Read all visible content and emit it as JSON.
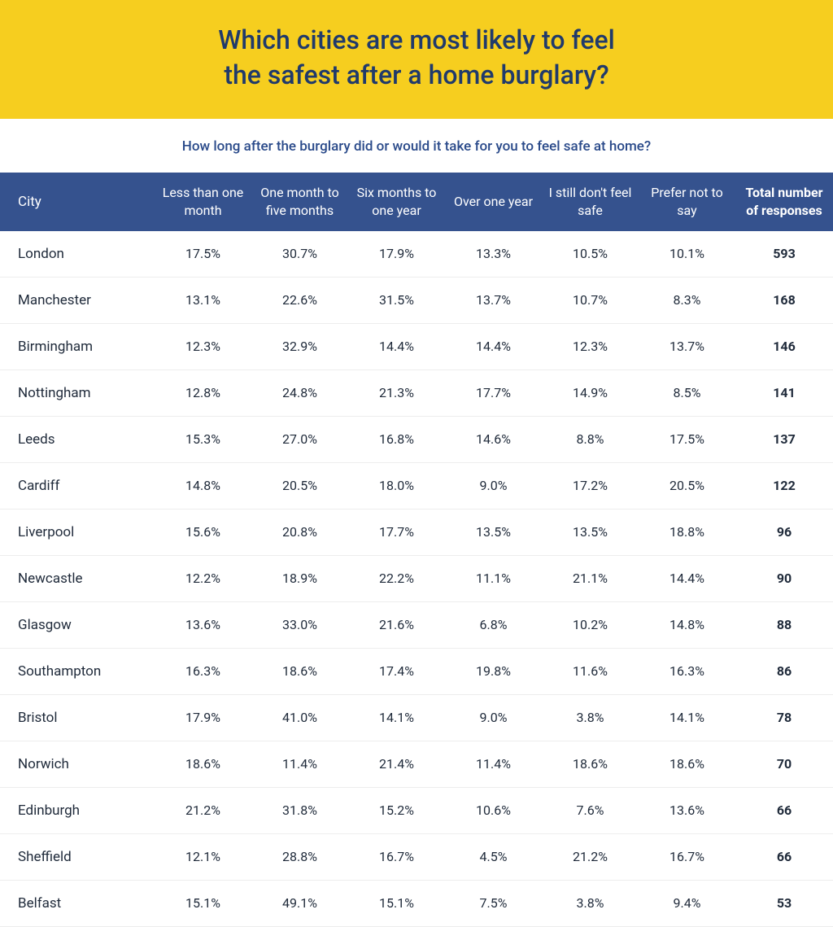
{
  "colors": {
    "banner_bg": "#f6ce1f",
    "banner_text": "#203a6b",
    "subtitle_text": "#2a4a8a",
    "header_bg": "#35528e",
    "header_text": "#ffffff",
    "body_text": "#1f2a3a",
    "row_border": "rgba(0,0,0,0.07)"
  },
  "banner": {
    "line1": "Which cities are most likely to feel",
    "line2": "the safest after a home burglary?"
  },
  "subtitle": "How long after the burglary did or would it take for you to feel safe at home?",
  "table": {
    "columns": [
      "City",
      "Less than one month",
      "One month to five months",
      "Six months to one year",
      "Over one year",
      "I still don't feel safe",
      "Prefer not to say",
      "Total number of responses"
    ],
    "rows": [
      {
        "city": "London",
        "c1": "17.5%",
        "c2": "30.7%",
        "c3": "17.9%",
        "c4": "13.3%",
        "c5": "10.5%",
        "c6": "10.1%",
        "total": "593"
      },
      {
        "city": "Manchester",
        "c1": "13.1%",
        "c2": "22.6%",
        "c3": "31.5%",
        "c4": "13.7%",
        "c5": "10.7%",
        "c6": "8.3%",
        "total": "168"
      },
      {
        "city": "Birmingham",
        "c1": "12.3%",
        "c2": "32.9%",
        "c3": "14.4%",
        "c4": "14.4%",
        "c5": "12.3%",
        "c6": "13.7%",
        "total": "146"
      },
      {
        "city": "Nottingham",
        "c1": "12.8%",
        "c2": "24.8%",
        "c3": "21.3%",
        "c4": "17.7%",
        "c5": "14.9%",
        "c6": "8.5%",
        "total": "141"
      },
      {
        "city": "Leeds",
        "c1": "15.3%",
        "c2": "27.0%",
        "c3": "16.8%",
        "c4": "14.6%",
        "c5": "8.8%",
        "c6": "17.5%",
        "total": "137"
      },
      {
        "city": "Cardiff",
        "c1": "14.8%",
        "c2": "20.5%",
        "c3": "18.0%",
        "c4": "9.0%",
        "c5": "17.2%",
        "c6": "20.5%",
        "total": "122"
      },
      {
        "city": "Liverpool",
        "c1": "15.6%",
        "c2": "20.8%",
        "c3": "17.7%",
        "c4": "13.5%",
        "c5": "13.5%",
        "c6": "18.8%",
        "total": "96"
      },
      {
        "city": "Newcastle",
        "c1": "12.2%",
        "c2": "18.9%",
        "c3": "22.2%",
        "c4": "11.1%",
        "c5": "21.1%",
        "c6": "14.4%",
        "total": "90"
      },
      {
        "city": "Glasgow",
        "c1": "13.6%",
        "c2": "33.0%",
        "c3": "21.6%",
        "c4": "6.8%",
        "c5": "10.2%",
        "c6": "14.8%",
        "total": "88"
      },
      {
        "city": "Southampton",
        "c1": "16.3%",
        "c2": "18.6%",
        "c3": "17.4%",
        "c4": "19.8%",
        "c5": "11.6%",
        "c6": "16.3%",
        "total": "86"
      },
      {
        "city": "Bristol",
        "c1": "17.9%",
        "c2": "41.0%",
        "c3": "14.1%",
        "c4": "9.0%",
        "c5": "3.8%",
        "c6": "14.1%",
        "total": "78"
      },
      {
        "city": "Norwich",
        "c1": "18.6%",
        "c2": "11.4%",
        "c3": "21.4%",
        "c4": "11.4%",
        "c5": "18.6%",
        "c6": "18.6%",
        "total": "70"
      },
      {
        "city": "Edinburgh",
        "c1": "21.2%",
        "c2": "31.8%",
        "c3": "15.2%",
        "c4": "10.6%",
        "c5": "7.6%",
        "c6": "13.6%",
        "total": "66"
      },
      {
        "city": "Sheffield",
        "c1": "12.1%",
        "c2": "28.8%",
        "c3": "16.7%",
        "c4": "4.5%",
        "c5": "21.2%",
        "c6": "16.7%",
        "total": "66"
      },
      {
        "city": "Belfast",
        "c1": "15.1%",
        "c2": "49.1%",
        "c3": "15.1%",
        "c4": "7.5%",
        "c5": "3.8%",
        "c6": "9.4%",
        "total": "53"
      }
    ]
  }
}
